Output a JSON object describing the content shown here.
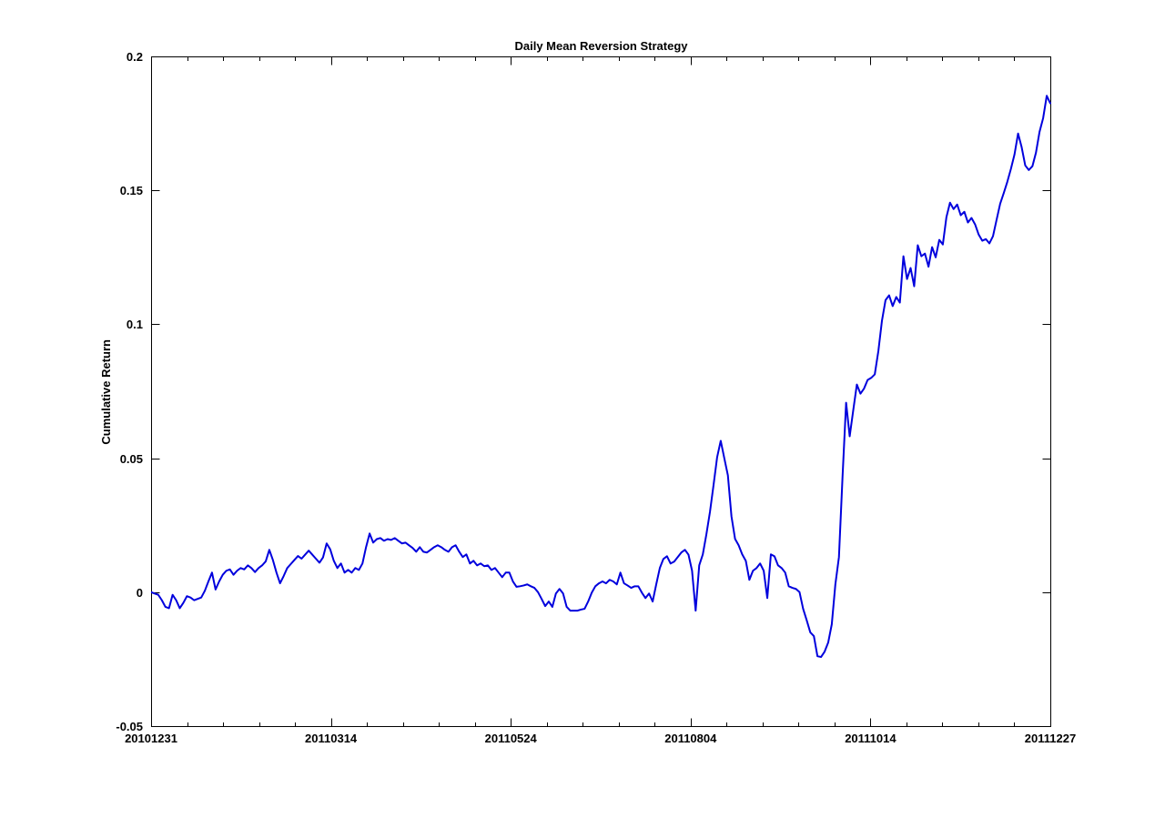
{
  "figure": {
    "background": "#ffffff",
    "axis_color": "#000000",
    "text_color": "#000000"
  },
  "chart_data": {
    "type": "line",
    "title": "Daily Mean Reversion Strategy",
    "xlabel": "",
    "ylabel": "Cumulative Return",
    "grid": false,
    "legend": null,
    "line_color": "#0000dd",
    "line_width": 2,
    "ylim": [
      -0.05,
      0.2
    ],
    "y_tick_values": [
      0.2,
      0.15,
      0.1,
      0.05,
      0,
      -0.05
    ],
    "y_tick_labels": [
      "0.2",
      "0.15",
      "0.1",
      "0.05",
      "0",
      "-0.05"
    ],
    "x_tick_positions": [
      0,
      0.2,
      0.4,
      0.6,
      0.8,
      1
    ],
    "x_tick_labels": [
      "20101231",
      "20110314",
      "20110524",
      "20110804",
      "20111014",
      "20111227"
    ],
    "x_minor_divisions_per_major": 5,
    "x_axis_note": "daily trading-day index from 20101231 to 20111227",
    "series": [
      {
        "name": "cumulative-return",
        "color": "#0000dd",
        "values": [
          0.0,
          -0.0005,
          -0.001,
          -0.003,
          -0.0055,
          -0.006,
          -0.001,
          -0.003,
          -0.006,
          -0.004,
          -0.0015,
          -0.002,
          -0.003,
          -0.0025,
          -0.002,
          0.0005,
          0.004,
          0.0073,
          0.001,
          0.004,
          0.0065,
          0.008,
          0.0085,
          0.0065,
          0.008,
          0.009,
          0.0085,
          0.01,
          0.009,
          0.0075,
          0.009,
          0.01,
          0.0115,
          0.0158,
          0.012,
          0.0073,
          0.0033,
          0.006,
          0.009,
          0.0105,
          0.012,
          0.0135,
          0.0125,
          0.014,
          0.0155,
          0.014,
          0.0125,
          0.011,
          0.013,
          0.0182,
          0.016,
          0.0117,
          0.009,
          0.0107,
          0.0073,
          0.0083,
          0.0073,
          0.009,
          0.0083,
          0.0107,
          0.0168,
          0.0219,
          0.0185,
          0.0198,
          0.0202,
          0.0192,
          0.0198,
          0.0195,
          0.0202,
          0.0192,
          0.0182,
          0.0185,
          0.0175,
          0.0165,
          0.0151,
          0.0168,
          0.0151,
          0.0148,
          0.0158,
          0.0168,
          0.0175,
          0.0168,
          0.0158,
          0.0151,
          0.0168,
          0.0175,
          0.0151,
          0.0131,
          0.0141,
          0.0107,
          0.0117,
          0.01,
          0.0107,
          0.0097,
          0.01,
          0.0083,
          0.009,
          0.0073,
          0.0056,
          0.0073,
          0.0073,
          0.004,
          0.002,
          0.0022,
          0.0025,
          0.0029,
          0.0022,
          0.0016,
          0.0,
          -0.0025,
          -0.0052,
          -0.0035,
          -0.0055,
          -0.0005,
          0.0012,
          -0.0005,
          -0.0055,
          -0.0069,
          -0.0069,
          -0.0069,
          -0.0065,
          -0.0062,
          -0.0035,
          -0.0002,
          0.0022,
          0.0033,
          0.004,
          0.0033,
          0.0046,
          0.004,
          0.0029,
          0.0073,
          0.0033,
          0.0025,
          0.0016,
          0.0022,
          0.0022,
          -0.0002,
          -0.0022,
          -0.0005,
          -0.0035,
          0.0029,
          0.009,
          0.0124,
          0.0134,
          0.0107,
          0.0114,
          0.0131,
          0.0148,
          0.0158,
          0.014,
          0.008,
          -0.0069,
          0.01,
          0.0141,
          0.0216,
          0.03,
          0.04,
          0.0504,
          0.0565,
          0.05,
          0.0436,
          0.0283,
          0.0199,
          0.0175,
          0.0141,
          0.0117,
          0.0046,
          0.008,
          0.009,
          0.0107,
          0.008,
          -0.0022,
          0.0141,
          0.0134,
          0.01,
          0.009,
          0.0073,
          0.0022,
          0.0016,
          0.0012,
          0.0,
          -0.0062,
          -0.0105,
          -0.015,
          -0.0164,
          -0.0239,
          -0.0242,
          -0.0222,
          -0.0188,
          -0.012,
          0.0029,
          0.0131,
          0.043,
          0.0707,
          0.0582,
          0.068,
          0.0775,
          0.0741,
          0.076,
          0.0792,
          0.08,
          0.0813,
          0.09,
          0.1013,
          0.109,
          0.1108,
          0.1068,
          0.1102,
          0.1081,
          0.1254,
          0.1169,
          0.121,
          0.1142,
          0.1295,
          0.1254,
          0.1264,
          0.1215,
          0.1288,
          0.125,
          0.1315,
          0.1298,
          0.14,
          0.1454,
          0.143,
          0.1447,
          0.1407,
          0.142,
          0.138,
          0.1397,
          0.1373,
          0.1335,
          0.1312,
          0.1318,
          0.1302,
          0.1329,
          0.139,
          0.145,
          0.149,
          0.1532,
          0.158,
          0.1634,
          0.1712,
          0.1661,
          0.1593,
          0.1576,
          0.159,
          0.1641,
          0.1719,
          0.177,
          0.1853,
          0.1825
        ]
      }
    ]
  }
}
